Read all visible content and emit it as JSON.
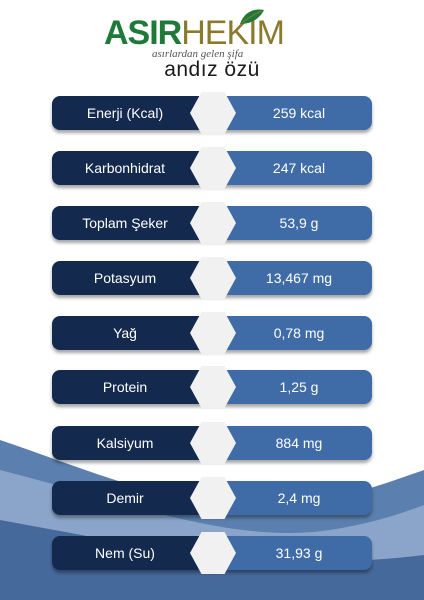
{
  "brand": {
    "name_part1": "ASIR",
    "name_part2": "HEKİM",
    "tagline": "asırlardan gelen şifa"
  },
  "product": {
    "title": "andız özü"
  },
  "nutrition": [
    {
      "label": "Enerji (Kcal)",
      "value": "259 kcal"
    },
    {
      "label": "Karbonhidrat",
      "value": "247 kcal"
    },
    {
      "label": "Toplam Şeker",
      "value": "53,9 g"
    },
    {
      "label": "Potasyum",
      "value": "13,467 mg"
    },
    {
      "label": "Yağ",
      "value": "0,78 mg"
    },
    {
      "label": "Protein",
      "value": "1,25 g"
    },
    {
      "label": "Kalsiyum",
      "value": "884 mg"
    },
    {
      "label": "Demir",
      "value": "2,4 mg"
    },
    {
      "label": "Nem (Su)",
      "value": "31,93  g"
    }
  ],
  "colors": {
    "label_bg": "#13294d",
    "value_bg": "#3f6ca6",
    "brand_green": "#1f7a3a",
    "brand_gold": "#8a7a2c"
  }
}
